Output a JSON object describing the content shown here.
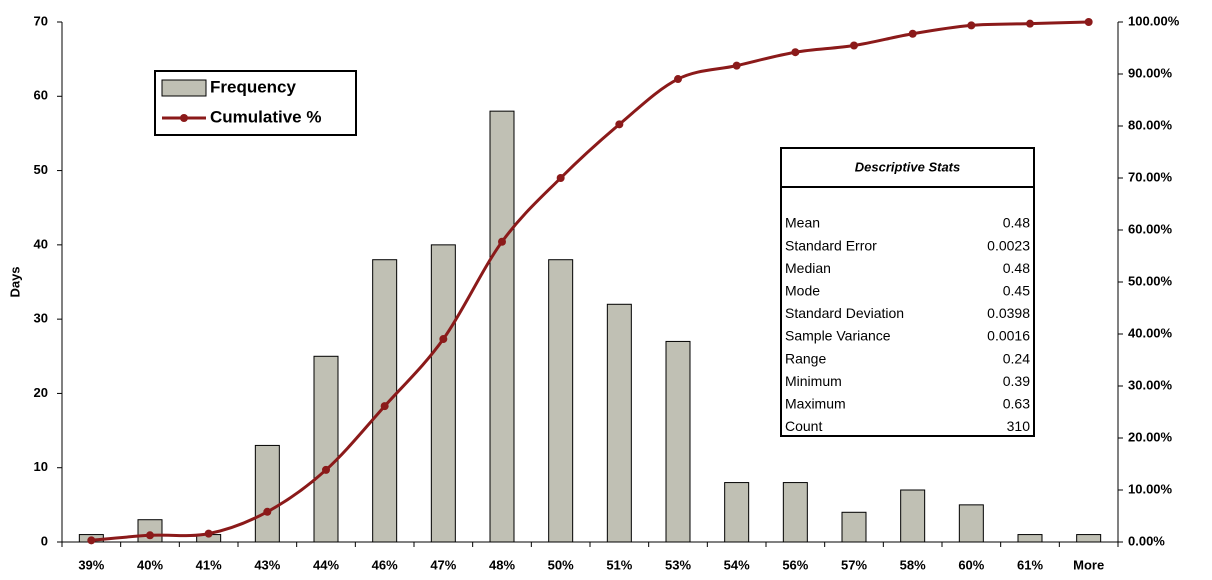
{
  "chart_data": {
    "type": "histogram-pareto",
    "categories": [
      "39%",
      "40%",
      "41%",
      "43%",
      "44%",
      "46%",
      "47%",
      "48%",
      "50%",
      "51%",
      "53%",
      "54%",
      "56%",
      "57%",
      "58%",
      "60%",
      "61%",
      "More"
    ],
    "series": [
      {
        "name": "Frequency",
        "color": "#c0c0b4",
        "values": [
          1,
          3,
          1,
          13,
          25,
          38,
          40,
          58,
          38,
          32,
          27,
          8,
          8,
          4,
          7,
          5,
          1,
          1
        ]
      },
      {
        "name": "Cumulative %",
        "color": "#8b1a1a",
        "axis": "y2",
        "values": [
          0.32,
          1.29,
          1.61,
          5.81,
          13.87,
          26.13,
          39.03,
          57.74,
          70.0,
          80.32,
          89.03,
          91.61,
          94.19,
          95.48,
          97.74,
          99.35,
          99.68,
          100
        ]
      }
    ],
    "y_label": "Days",
    "ylim": [
      0,
      70
    ],
    "yticks": [
      0,
      10,
      20,
      30,
      40,
      50,
      60,
      70
    ],
    "y2lim": [
      0,
      100
    ],
    "y2ticks": [
      {
        "value": 0,
        "label": "0.00%"
      },
      {
        "value": 10,
        "label": "10.00%"
      },
      {
        "value": 20,
        "label": "20.00%"
      },
      {
        "value": 30,
        "label": "30.00%"
      },
      {
        "value": 40,
        "label": "40.00%"
      },
      {
        "value": 50,
        "label": "50.00%"
      },
      {
        "value": 60,
        "label": "60.00%"
      },
      {
        "value": 70,
        "label": "70.00%"
      },
      {
        "value": 80,
        "label": "80.00%"
      },
      {
        "value": 90,
        "label": "90.00%"
      },
      {
        "value": 100,
        "label": "100.00%"
      }
    ],
    "legend": "upper left",
    "grid": false,
    "stats_table": {
      "title": "Descriptive Stats",
      "rows": [
        [
          "Mean",
          0.48
        ],
        [
          "Standard Error",
          0.0023
        ],
        [
          "Median",
          0.48
        ],
        [
          "Mode",
          0.45
        ],
        [
          "Standard Deviation",
          0.0398
        ],
        [
          "Sample Variance",
          0.0016
        ],
        [
          "Range",
          0.24
        ],
        [
          "Minimum",
          0.39
        ],
        [
          "Maximum",
          0.63
        ],
        [
          "Count",
          310
        ]
      ]
    }
  }
}
